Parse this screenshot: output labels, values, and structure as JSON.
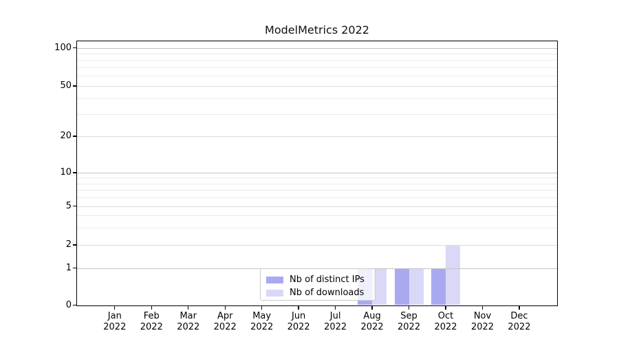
{
  "chart_data": {
    "type": "bar",
    "title": "ModelMetrics 2022",
    "categories": [
      "Jan 2022",
      "Feb 2022",
      "Mar 2022",
      "Apr 2022",
      "May 2022",
      "Jun 2022",
      "Jul 2022",
      "Aug 2022",
      "Sep 2022",
      "Oct 2022",
      "Nov 2022",
      "Dec 2022"
    ],
    "series": [
      {
        "name": "Nb of distinct IPs",
        "color": "#a9a9f1",
        "values": [
          0,
          0,
          0,
          0,
          0,
          0,
          0,
          1,
          1,
          1,
          0,
          0
        ]
      },
      {
        "name": "Nb of downloads",
        "color": "#d9d9f7",
        "values": [
          0,
          0,
          0,
          0,
          0,
          0,
          0,
          1,
          1,
          2,
          0,
          0
        ]
      }
    ],
    "y_axis": {
      "scale": "symlog",
      "ticks": [
        0,
        1,
        2,
        5,
        10,
        20,
        50,
        100
      ],
      "minor_ticks": [
        3,
        4,
        6,
        7,
        8,
        9,
        30,
        40,
        60,
        70,
        80,
        90
      ],
      "ylim": [
        0,
        115
      ],
      "grid": "major+minor"
    },
    "x_axis": {
      "tick_label_lines": 2
    },
    "legend": {
      "position": "lower-center",
      "entries": [
        "Nb of distinct IPs",
        "Nb of downloads"
      ]
    }
  }
}
